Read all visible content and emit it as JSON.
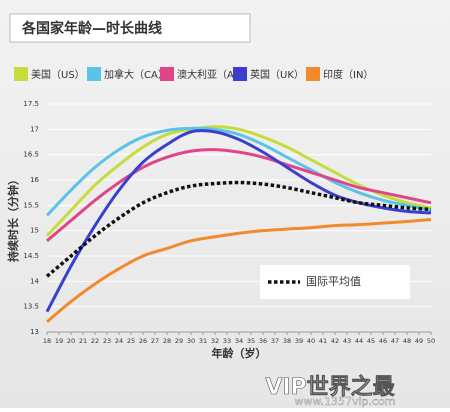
{
  "chart_data": {
    "type": "line",
    "title": "各国家年龄—时长曲线",
    "x_label": "年龄（岁）",
    "y_label": "持续时长（分钟）",
    "x": [
      18,
      20,
      22,
      24,
      26,
      28,
      30,
      32,
      34,
      36,
      38,
      40,
      42,
      44,
      46,
      48,
      50
    ],
    "series": [
      {
        "name": "美国（US）",
        "color": "#c5dc3c",
        "values": [
          14.9,
          15.4,
          15.9,
          16.3,
          16.65,
          16.9,
          17.0,
          17.05,
          17.0,
          16.85,
          16.65,
          16.4,
          16.15,
          15.9,
          15.7,
          15.55,
          15.45
        ]
      },
      {
        "name": "加拿大（CA）",
        "color": "#5bc3e8",
        "values": [
          15.3,
          15.8,
          16.25,
          16.6,
          16.85,
          16.98,
          17.02,
          17.0,
          16.9,
          16.7,
          16.45,
          16.2,
          15.95,
          15.75,
          15.6,
          15.5,
          15.4
        ]
      },
      {
        "name": "澳大利亚（AU）",
        "color": "#e0458a",
        "values": [
          14.8,
          15.2,
          15.6,
          15.95,
          16.25,
          16.45,
          16.57,
          16.6,
          16.55,
          16.45,
          16.3,
          16.15,
          16.0,
          15.85,
          15.75,
          15.65,
          15.55
        ]
      },
      {
        "name": "英国（UK）",
        "color": "#3a3fd0",
        "values": [
          13.4,
          14.3,
          15.1,
          15.8,
          16.35,
          16.7,
          16.95,
          16.95,
          16.8,
          16.55,
          16.25,
          15.95,
          15.7,
          15.55,
          15.45,
          15.38,
          15.35
        ]
      },
      {
        "name": "印度（IN）",
        "color": "#f08a2c",
        "values": [
          13.2,
          13.6,
          13.95,
          14.25,
          14.5,
          14.65,
          14.8,
          14.88,
          14.95,
          15.0,
          15.03,
          15.06,
          15.1,
          15.12,
          15.15,
          15.18,
          15.22
        ]
      },
      {
        "name": "国际平均值",
        "color": "#111111",
        "line_style": "dotted",
        "values": [
          14.1,
          14.5,
          14.9,
          15.25,
          15.55,
          15.75,
          15.88,
          15.93,
          15.95,
          15.92,
          15.85,
          15.75,
          15.65,
          15.55,
          15.5,
          15.45,
          15.42
        ]
      }
    ],
    "xlim": [
      18,
      50
    ],
    "xticks": [
      18,
      19,
      20,
      21,
      22,
      23,
      24,
      25,
      26,
      27,
      28,
      29,
      30,
      31,
      32,
      33,
      34,
      35,
      36,
      37,
      38,
      39,
      40,
      41,
      42,
      43,
      44,
      45,
      46,
      47,
      48,
      49,
      50
    ],
    "ylim": [
      13,
      17.5
    ],
    "yticks": [
      13,
      13.5,
      14,
      14.5,
      15,
      15.5,
      16,
      16.5,
      17,
      17.5
    ],
    "grid": true
  },
  "watermark": {
    "brand": "VIP世界之最",
    "url": "www.1357vip.com"
  }
}
